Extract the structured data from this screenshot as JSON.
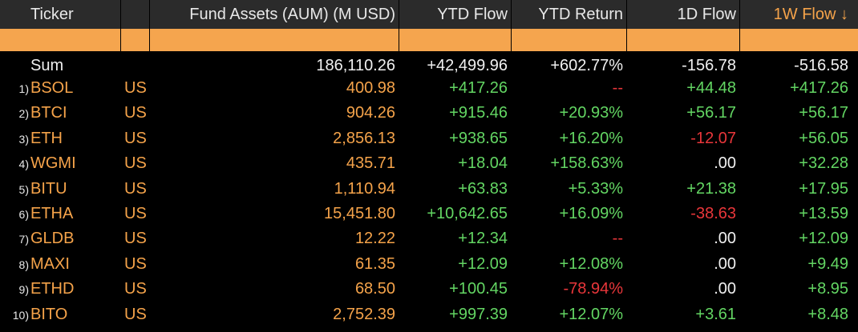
{
  "header": {
    "columns": [
      "Ticker",
      "Fund Assets (AUM) (M USD)",
      "YTD Flow",
      "YTD Return",
      "1D Flow",
      "1W Flow ↓"
    ]
  },
  "sum": {
    "label": "Sum",
    "cells": [
      "186,110.26",
      "+42,499.96",
      "+602.77%",
      "-156.78",
      "-516.58"
    ]
  },
  "rows": [
    {
      "num": "1)",
      "ticker": "BSOL",
      "country": "US",
      "cells": [
        "400.98",
        "+417.26",
        "--",
        "+44.48",
        "+417.26"
      ]
    },
    {
      "num": "2)",
      "ticker": "BTCI",
      "country": "US",
      "cells": [
        "904.26",
        "+915.46",
        "+20.93%",
        "+56.17",
        "+56.17"
      ]
    },
    {
      "num": "3)",
      "ticker": "ETH",
      "country": "US",
      "cells": [
        "2,856.13",
        "+938.65",
        "+16.20%",
        "-12.07",
        "+56.05"
      ]
    },
    {
      "num": "4)",
      "ticker": "WGMI",
      "country": "US",
      "cells": [
        "435.71",
        "+18.04",
        "+158.63%",
        ".00",
        "+32.28"
      ]
    },
    {
      "num": "5)",
      "ticker": "BITU",
      "country": "US",
      "cells": [
        "1,110.94",
        "+63.83",
        "+5.33%",
        "+21.38",
        "+17.95"
      ]
    },
    {
      "num": "6)",
      "ticker": "ETHA",
      "country": "US",
      "cells": [
        "15,451.80",
        "+10,642.65",
        "+16.09%",
        "-38.63",
        "+13.59"
      ]
    },
    {
      "num": "7)",
      "ticker": "GLDB",
      "country": "US",
      "cells": [
        "12.22",
        "+12.34",
        "--",
        ".00",
        "+12.09"
      ]
    },
    {
      "num": "8)",
      "ticker": "MAXI",
      "country": "US",
      "cells": [
        "61.35",
        "+12.09",
        "+12.08%",
        ".00",
        "+9.49"
      ]
    },
    {
      "num": "9)",
      "ticker": "ETHD",
      "country": "US",
      "cells": [
        "68.50",
        "+100.45",
        "-78.94%",
        ".00",
        "+8.95"
      ]
    },
    {
      "num": "10)",
      "ticker": "BITO",
      "country": "US",
      "cells": [
        "2,752.39",
        "+997.39",
        "+12.07%",
        "+3.61",
        "+8.48"
      ]
    }
  ]
}
